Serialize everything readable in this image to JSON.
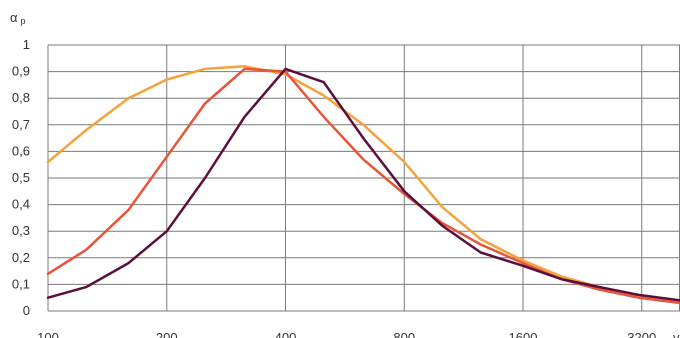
{
  "chart_data": {
    "type": "line",
    "ylabel": "α",
    "ylabel_sub": "p",
    "xlabel_partial": "v",
    "x": [
      100,
      125,
      160,
      200,
      250,
      315,
      400,
      500,
      630,
      800,
      1000,
      1250,
      1600,
      2000,
      2500,
      3150,
      4000
    ],
    "x_scale": "log2",
    "x_ticks": [
      100,
      200,
      400,
      800,
      1600,
      3200
    ],
    "x_tick_labels": [
      "100",
      "200",
      "400",
      "800",
      "1600",
      "3200"
    ],
    "y_ticks": [
      0,
      0.1,
      0.2,
      0.3,
      0.4,
      0.5,
      0.6,
      0.7,
      0.8,
      0.9,
      1
    ],
    "y_tick_labels": [
      "0",
      "0,1",
      "0,2",
      "0,3",
      "0,4",
      "0,5",
      "0,6",
      "0,7",
      "0,8",
      "0,9",
      "1"
    ],
    "ylim": [
      0,
      1
    ],
    "grid": true,
    "legend": "none",
    "series": [
      {
        "color": "#F4A23A",
        "values": [
          0.56,
          0.68,
          0.8,
          0.87,
          0.91,
          0.92,
          0.89,
          0.81,
          0.7,
          0.56,
          0.39,
          0.27,
          0.19,
          0.13,
          0.09,
          0.06,
          0.04
        ]
      },
      {
        "color": "#E8543A",
        "values": [
          0.14,
          0.23,
          0.38,
          0.58,
          0.78,
          0.91,
          0.9,
          0.73,
          0.57,
          0.44,
          0.33,
          0.25,
          0.18,
          0.12,
          0.08,
          0.05,
          0.03
        ]
      },
      {
        "color": "#5C0E3C",
        "values": [
          0.05,
          0.09,
          0.18,
          0.3,
          0.5,
          0.73,
          0.91,
          0.86,
          0.65,
          0.45,
          0.32,
          0.22,
          0.17,
          0.12,
          0.09,
          0.06,
          0.04
        ]
      }
    ]
  }
}
